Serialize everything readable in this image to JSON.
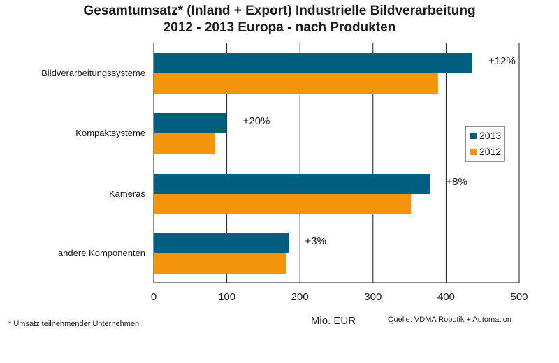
{
  "title_line1": "Gesamtumsatz* (Inland + Export) Industrielle Bildverarbeitung",
  "title_line2": "2012 - 2013 Europa - nach Produkten",
  "footnote": "* Umsatz teilnehmender Unternehmen",
  "source": "Quelle: VDMA Robotik + Automation",
  "colors": {
    "series_2013": "#005f7f",
    "series_2012": "#f2950a",
    "grid": "#1a1a1a"
  },
  "chart_data": {
    "type": "bar",
    "orientation": "horizontal",
    "categories": [
      "Bildverarbeitungssysteme",
      "Kompaktsysteme",
      "Kameras",
      "andere Komponenten"
    ],
    "series": [
      {
        "name": "2013",
        "values": [
          436,
          100,
          378,
          185
        ]
      },
      {
        "name": "2012",
        "values": [
          389,
          84,
          352,
          181
        ]
      }
    ],
    "annotations": [
      "+12%",
      "+20%",
      "+8%",
      "+3%"
    ],
    "xlabel": "Mio. EUR",
    "xlim": [
      0,
      500
    ],
    "xticks": [
      0,
      100,
      200,
      300,
      400,
      500
    ],
    "grid": true,
    "legend_position": "right"
  }
}
